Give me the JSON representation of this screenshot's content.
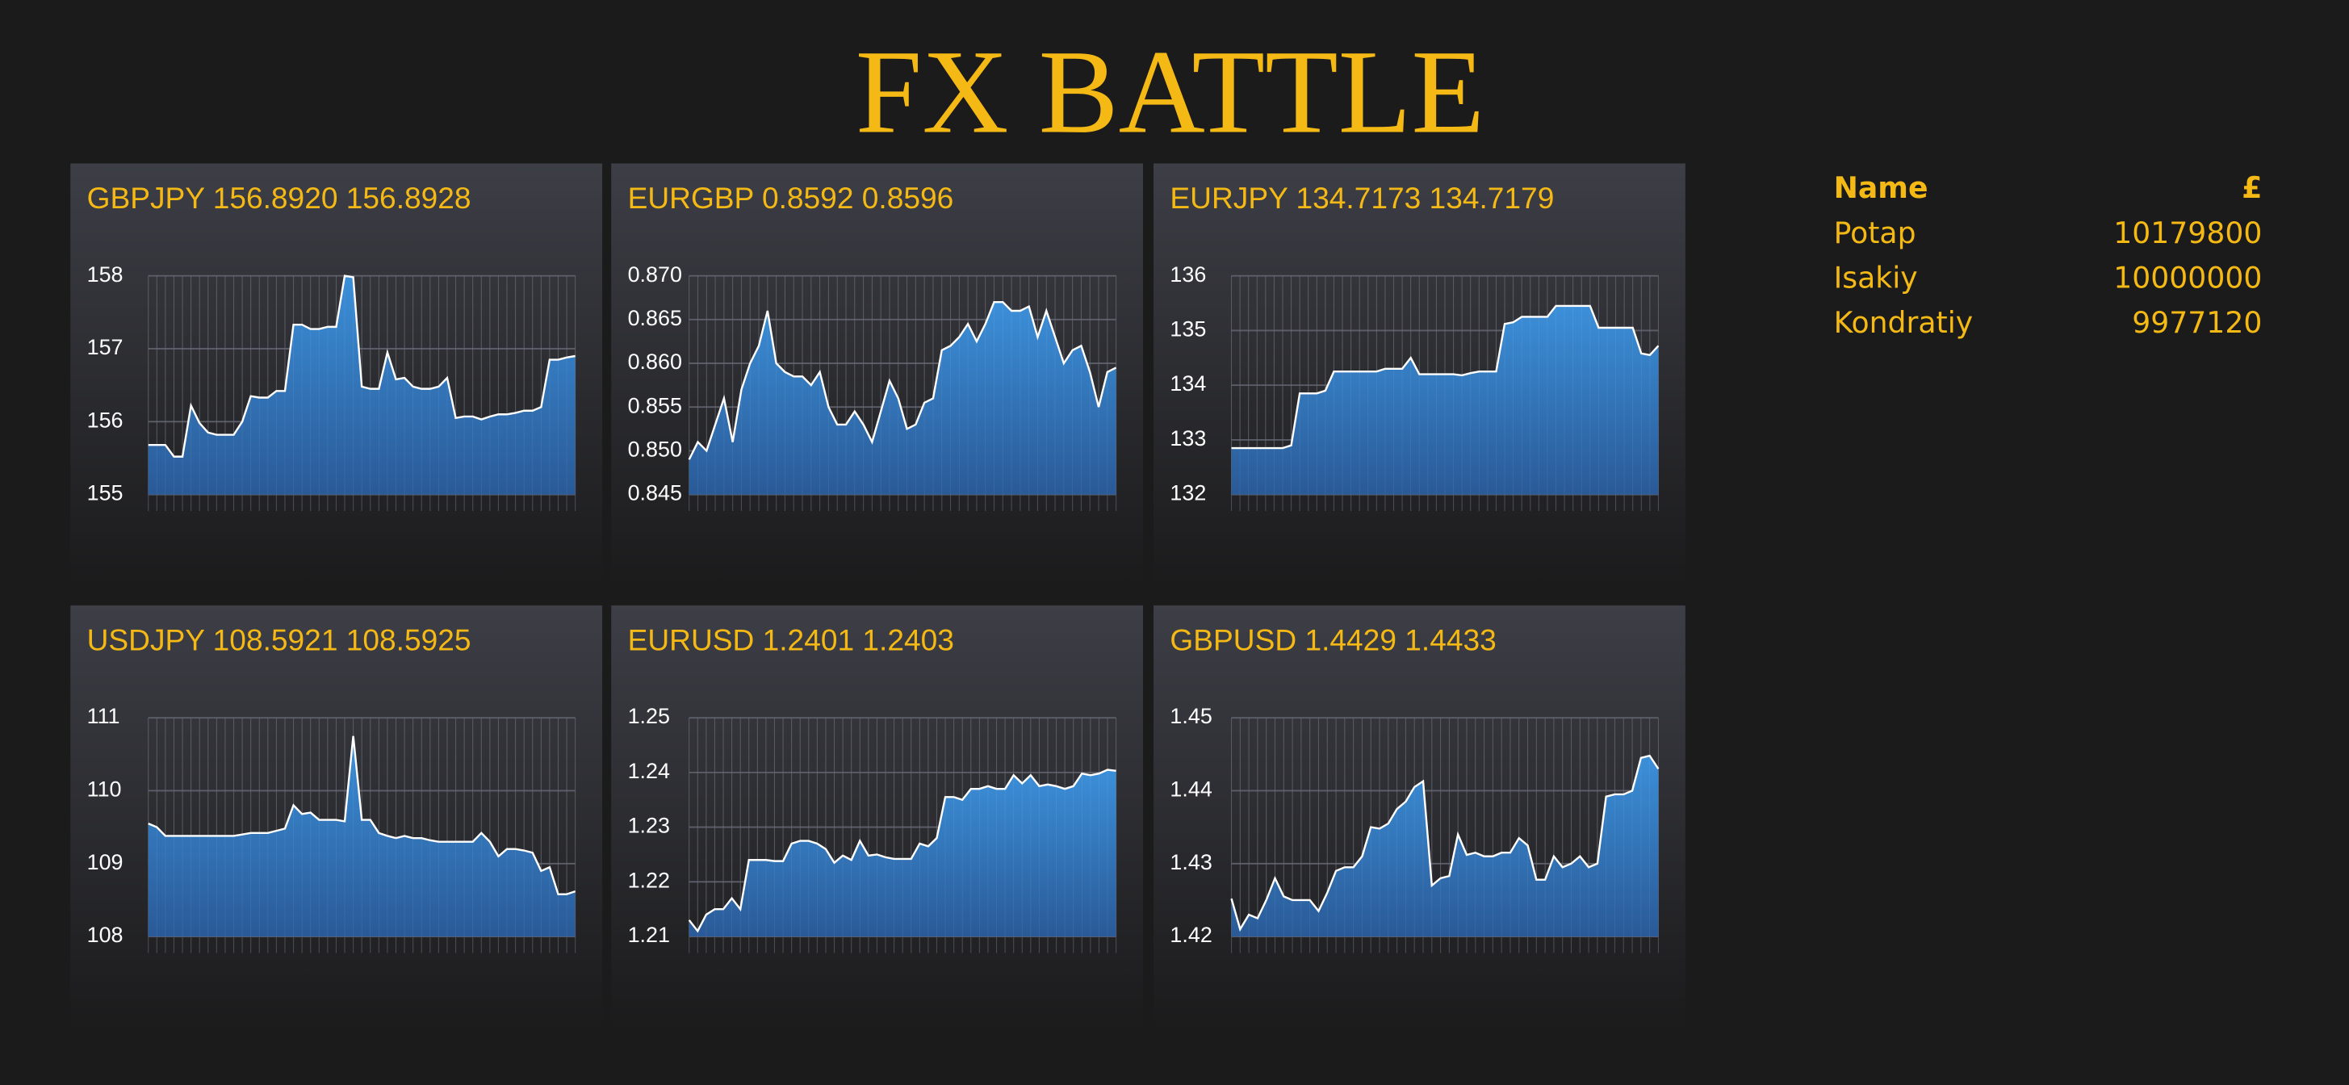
{
  "header": {
    "title": "FX BATTLE"
  },
  "leaderboard": {
    "columns": [
      "Name",
      "£"
    ],
    "rows": [
      [
        "Potap",
        "10179800"
      ],
      [
        "Isakiy",
        "10000000"
      ],
      [
        "Kondratiy",
        "9977120"
      ]
    ]
  },
  "chart_data": [
    {
      "type": "area",
      "title": "GBPJPY 156.8920 156.8928",
      "color": "#3b8fd9",
      "line_color": "#ffffff",
      "grid": true,
      "ylim": [
        155,
        158
      ],
      "yticks": [
        155,
        156,
        157,
        158
      ],
      "values": [
        155.68,
        155.68,
        155.68,
        155.52,
        155.52,
        156.22,
        155.98,
        155.85,
        155.82,
        155.82,
        155.82,
        156.0,
        156.35,
        156.33,
        156.33,
        156.42,
        156.42,
        157.33,
        157.33,
        157.27,
        157.27,
        157.3,
        157.3,
        158.0,
        157.98,
        156.48,
        156.45,
        156.45,
        156.95,
        156.58,
        156.6,
        156.48,
        156.45,
        156.45,
        156.48,
        156.6,
        156.05,
        156.07,
        156.07,
        156.03,
        156.07,
        156.1,
        156.1,
        156.12,
        156.15,
        156.15,
        156.2,
        156.85,
        156.85,
        156.88,
        156.9
      ]
    },
    {
      "type": "area",
      "title": "EURGBP 0.8592 0.8596",
      "color": "#3b8fd9",
      "line_color": "#ffffff",
      "grid": true,
      "ylim": [
        0.845,
        0.87
      ],
      "yticks": [
        0.845,
        {
          "value": 0.85,
          "label": "0.850"
        },
        0.855,
        {
          "value": 0.86,
          "label": "0.860"
        },
        0.865,
        {
          "value": 0.87,
          "label": "0.870"
        }
      ],
      "values": [
        0.849,
        0.851,
        0.85,
        0.853,
        0.856,
        0.851,
        0.857,
        0.86,
        0.862,
        0.866,
        0.86,
        0.859,
        0.8585,
        0.8585,
        0.8575,
        0.859,
        0.855,
        0.853,
        0.853,
        0.8545,
        0.853,
        0.851,
        0.8545,
        0.858,
        0.856,
        0.8525,
        0.853,
        0.8555,
        0.856,
        0.8615,
        0.862,
        0.863,
        0.8645,
        0.8625,
        0.8645,
        0.867,
        0.867,
        0.866,
        0.866,
        0.8665,
        0.863,
        0.866,
        0.863,
        0.86,
        0.8615,
        0.862,
        0.859,
        0.855,
        0.859,
        0.8595
      ]
    },
    {
      "type": "area",
      "title": "EURJPY 134.7173 134.7179",
      "color": "#3b8fd9",
      "line_color": "#ffffff",
      "grid": true,
      "ylim": [
        132,
        136
      ],
      "yticks": [
        132,
        133,
        134,
        135,
        136
      ],
      "values": [
        132.85,
        132.85,
        132.85,
        132.85,
        132.85,
        132.85,
        132.85,
        132.9,
        133.85,
        133.85,
        133.85,
        133.9,
        134.25,
        134.25,
        134.25,
        134.25,
        134.25,
        134.25,
        134.3,
        134.3,
        134.3,
        134.5,
        134.2,
        134.2,
        134.2,
        134.2,
        134.2,
        134.18,
        134.22,
        134.25,
        134.25,
        134.25,
        135.12,
        135.15,
        135.25,
        135.25,
        135.25,
        135.25,
        135.45,
        135.45,
        135.45,
        135.45,
        135.45,
        135.05,
        135.05,
        135.05,
        135.05,
        135.05,
        134.58,
        134.55,
        134.72
      ]
    },
    {
      "type": "area",
      "title": "USDJPY 108.5921 108.5925",
      "color": "#3b8fd9",
      "line_color": "#ffffff",
      "grid": true,
      "ylim": [
        108,
        111
      ],
      "yticks": [
        108,
        109,
        110,
        111
      ],
      "values": [
        109.55,
        109.5,
        109.38,
        109.38,
        109.38,
        109.38,
        109.38,
        109.38,
        109.38,
        109.38,
        109.38,
        109.4,
        109.42,
        109.42,
        109.42,
        109.45,
        109.48,
        109.8,
        109.68,
        109.7,
        109.6,
        109.6,
        109.6,
        109.58,
        110.75,
        109.6,
        109.6,
        109.42,
        109.38,
        109.35,
        109.38,
        109.35,
        109.35,
        109.32,
        109.3,
        109.3,
        109.3,
        109.3,
        109.3,
        109.42,
        109.3,
        109.1,
        109.2,
        109.2,
        109.18,
        109.15,
        108.9,
        108.95,
        108.58,
        108.58,
        108.62
      ]
    },
    {
      "type": "area",
      "title": "EURUSD 1.2401 1.2403",
      "color": "#3b8fd9",
      "line_color": "#ffffff",
      "grid": true,
      "ylim": [
        1.21,
        1.25
      ],
      "yticks": [
        1.21,
        1.22,
        1.23,
        1.24,
        1.25
      ],
      "values": [
        1.213,
        1.211,
        1.214,
        1.215,
        1.215,
        1.217,
        1.215,
        1.224,
        1.224,
        1.224,
        1.2238,
        1.2238,
        1.227,
        1.2275,
        1.2275,
        1.227,
        1.226,
        1.2235,
        1.2248,
        1.224,
        1.2275,
        1.2248,
        1.225,
        1.2245,
        1.2242,
        1.2242,
        1.2242,
        1.227,
        1.2265,
        1.228,
        1.2355,
        1.2355,
        1.235,
        1.237,
        1.237,
        1.2375,
        1.237,
        1.237,
        1.2395,
        1.238,
        1.2395,
        1.2375,
        1.2378,
        1.2375,
        1.237,
        1.2375,
        1.2398,
        1.2395,
        1.2398,
        1.2405,
        1.2403
      ]
    },
    {
      "type": "area",
      "title": "GBPUSD 1.4429 1.4433",
      "color": "#3b8fd9",
      "line_color": "#ffffff",
      "grid": true,
      "ylim": [
        1.42,
        1.45
      ],
      "yticks": [
        1.42,
        1.43,
        1.44,
        1.45
      ],
      "values": [
        1.4252,
        1.421,
        1.423,
        1.4225,
        1.425,
        1.428,
        1.4255,
        1.425,
        1.425,
        1.425,
        1.4235,
        1.426,
        1.429,
        1.4295,
        1.4295,
        1.431,
        1.435,
        1.4348,
        1.4355,
        1.4375,
        1.4385,
        1.4405,
        1.4413,
        1.427,
        1.428,
        1.4283,
        1.434,
        1.4312,
        1.4315,
        1.431,
        1.431,
        1.4315,
        1.4315,
        1.4335,
        1.4325,
        1.4278,
        1.4278,
        1.431,
        1.4295,
        1.43,
        1.431,
        1.4295,
        1.43,
        1.4392,
        1.4395,
        1.4395,
        1.44,
        1.4445,
        1.4448,
        1.443
      ]
    }
  ]
}
